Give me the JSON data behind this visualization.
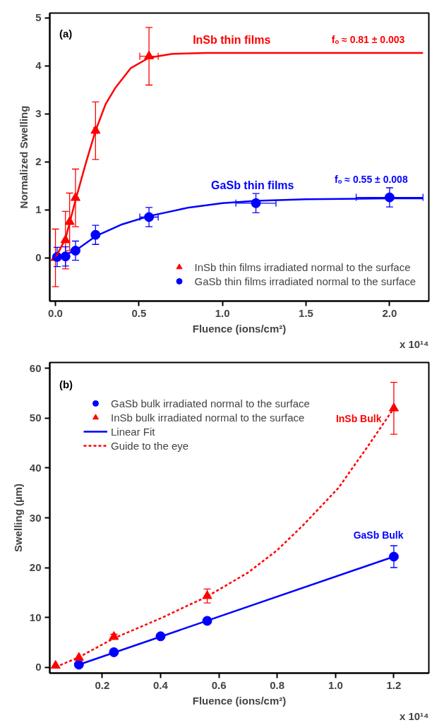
{
  "chart_data": [
    {
      "type": "scatter",
      "xlabel": "Fluence (ions/cm²)",
      "ylabel": "Normalized Swelling",
      "xlim": [
        -0.034,
        2.235
      ],
      "ylim": [
        -0.9,
        5.1
      ],
      "xticks": [
        {
          "value": 0,
          "label": "0.0"
        },
        0.5,
        {
          "value": 1,
          "label": "1.0"
        },
        1.5,
        {
          "value": 2,
          "label": "2.0"
        }
      ],
      "yticks": [
        0,
        1,
        2,
        3,
        4,
        5
      ],
      "legend": "bottom right",
      "series": [
        {
          "name": "InSb thin films irradiated normal to the surface",
          "color": "#ff0000",
          "marker": "triangle",
          "x": [
            0,
            0.06,
            0.085,
            0.12,
            0.24,
            0.56
          ],
          "values": [
            0,
            0.37,
            0.75,
            1.25,
            2.65,
            4.2
          ],
          "errors": [
            0.6,
            0.6,
            0.6,
            0.6,
            0.6,
            0.6
          ],
          "xerrors": [
            null,
            null,
            null,
            null,
            0.01,
            0.055
          ]
        },
        {
          "name": "GaSb thin films irradiated normal to the surface",
          "color": "#0000ff",
          "marker": "circle",
          "x": [
            0.01,
            0.06,
            0.12,
            0.24,
            0.56,
            1.2,
            2.0
          ],
          "values": [
            0.02,
            0.03,
            0.15,
            0.48,
            0.85,
            1.14,
            1.26
          ],
          "errors": [
            0.2,
            0.2,
            0.2,
            0.2,
            0.2,
            0.2,
            0.2
          ],
          "xerrors": [
            null,
            null,
            null,
            0.01,
            0.055,
            0.12,
            0.2
          ]
        },
        {
          "type": "line",
          "color": "#ff0000",
          "line_style": "solid",
          "x": [
            0,
            0.06,
            0.12,
            0.18,
            0.24,
            0.3,
            0.36,
            0.45,
            0.56,
            0.7,
            0.9,
            2.2
          ],
          "values": [
            0,
            0.4,
            1.2,
            1.95,
            2.65,
            3.2,
            3.55,
            3.95,
            4.17,
            4.25,
            4.27,
            4.27
          ]
        },
        {
          "type": "line",
          "color": "#0000ff",
          "line_style": "solid",
          "x": [
            0,
            0.12,
            0.24,
            0.4,
            0.56,
            0.8,
            1.0,
            1.2,
            1.5,
            2.0,
            2.2
          ],
          "values": [
            0,
            0.15,
            0.45,
            0.7,
            0.87,
            1.05,
            1.14,
            1.19,
            1.22,
            1.24,
            1.24
          ]
        }
      ],
      "annotations": [
        "(a)",
        "InSb thin films",
        "fₒ ≈ 0.81 ± 0.003",
        "GaSb thin films",
        "fₒ ≈ 0.55 ± 0.008",
        "x 10¹⁴"
      ]
    },
    {
      "type": "scatter",
      "xlabel": "Fluence (ions/cm²)",
      "ylabel": "Swelling (µm)",
      "xlim": [
        0.02,
        1.32
      ],
      "ylim": [
        -1.2,
        61.2
      ],
      "xticks": [
        0.2,
        0.4,
        0.6,
        0.8,
        {
          "value": 1,
          "label": "1.0"
        },
        1.2
      ],
      "yticks": [
        0,
        10,
        20,
        30,
        40,
        50,
        60
      ],
      "legend": "top left",
      "series": [
        {
          "name": "GaSb bulk irradiated normal to the surface",
          "color": "#0000ff",
          "marker": "circle",
          "x": [
            0.12,
            0.24,
            0.4,
            0.56,
            1.2
          ],
          "values": [
            0.5,
            3.0,
            6.2,
            9.3,
            22.2
          ],
          "errors": [
            null,
            null,
            null,
            null,
            2.2
          ]
        },
        {
          "name": "InSb bulk irradiated normal to the surface",
          "color": "#ff0000",
          "marker": "triangle",
          "x": [
            0.04,
            0.12,
            0.24,
            0.56,
            1.2
          ],
          "values": [
            0.3,
            1.9,
            6.1,
            14.3,
            52
          ],
          "errors": [
            null,
            null,
            0.5,
            1.4,
            5.2
          ]
        },
        {
          "name": "Linear Fit",
          "type": "line",
          "color": "#0000ff",
          "line_style": "solid",
          "x": [
            0.12,
            1.2
          ],
          "values": [
            0.5,
            22.2
          ]
        },
        {
          "name": "Guide to the eye",
          "type": "line",
          "color": "#ff0000",
          "line_style": "dashed",
          "x": [
            0.04,
            0.12,
            0.24,
            0.4,
            0.56,
            0.7,
            0.8,
            0.887,
            1.01,
            1.11,
            1.2
          ],
          "values": [
            0,
            2.0,
            5.8,
            9.8,
            14.2,
            19.0,
            23.5,
            28.4,
            36,
            44.3,
            52
          ]
        }
      ],
      "annotations": [
        "(b)",
        "InSb Bulk",
        "GaSb Bulk",
        "x 10¹⁴"
      ]
    }
  ]
}
